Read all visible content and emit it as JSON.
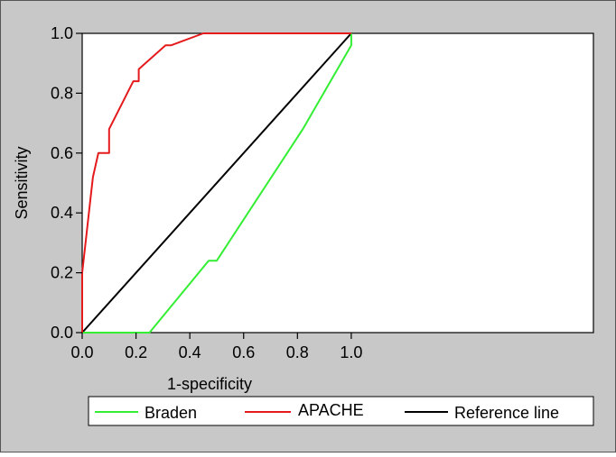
{
  "chart_data": {
    "type": "line",
    "title": "",
    "xlabel": "1-specificity",
    "ylabel": "Sensitivity",
    "xlim": [
      0,
      1.9
    ],
    "ylim": [
      0,
      1.0
    ],
    "grid": false,
    "legend_position": "bottom",
    "x_ticks": [
      0.0,
      0.2,
      0.4,
      0.6,
      0.8,
      1.0
    ],
    "x_tick_labels": [
      "0.0",
      "0.2",
      "0.4",
      "0.6",
      "0.8",
      "1.0"
    ],
    "y_ticks": [
      0.0,
      0.2,
      0.4,
      0.6,
      0.8,
      1.0
    ],
    "y_tick_labels": [
      "0.0",
      "0.2",
      "0.4",
      "0.6",
      "0.8",
      "1.0"
    ],
    "colors": {
      "frame_background": "#c8c8c8",
      "plot_background": "#ffffff",
      "axis": "#000000"
    },
    "series": [
      {
        "name": "Braden",
        "color": "#33ee33",
        "points": [
          [
            0.0,
            0.0
          ],
          [
            0.25,
            0.0
          ],
          [
            0.47,
            0.24
          ],
          [
            0.5,
            0.24
          ],
          [
            0.82,
            0.68
          ],
          [
            1.0,
            0.96
          ],
          [
            1.0,
            1.0
          ]
        ]
      },
      {
        "name": "APACHE",
        "color": "#e41a1c",
        "points": [
          [
            0.0,
            0.0
          ],
          [
            0.0,
            0.2
          ],
          [
            0.03,
            0.44
          ],
          [
            0.04,
            0.52
          ],
          [
            0.06,
            0.6
          ],
          [
            0.1,
            0.6
          ],
          [
            0.1,
            0.68
          ],
          [
            0.19,
            0.84
          ],
          [
            0.21,
            0.84
          ],
          [
            0.21,
            0.88
          ],
          [
            0.31,
            0.96
          ],
          [
            0.33,
            0.96
          ],
          [
            0.45,
            1.0
          ],
          [
            1.0,
            1.0
          ]
        ]
      },
      {
        "name": "Reference line",
        "color": "#000000",
        "points": [
          [
            0.0,
            0.0
          ],
          [
            1.0,
            1.0
          ]
        ]
      }
    ]
  }
}
